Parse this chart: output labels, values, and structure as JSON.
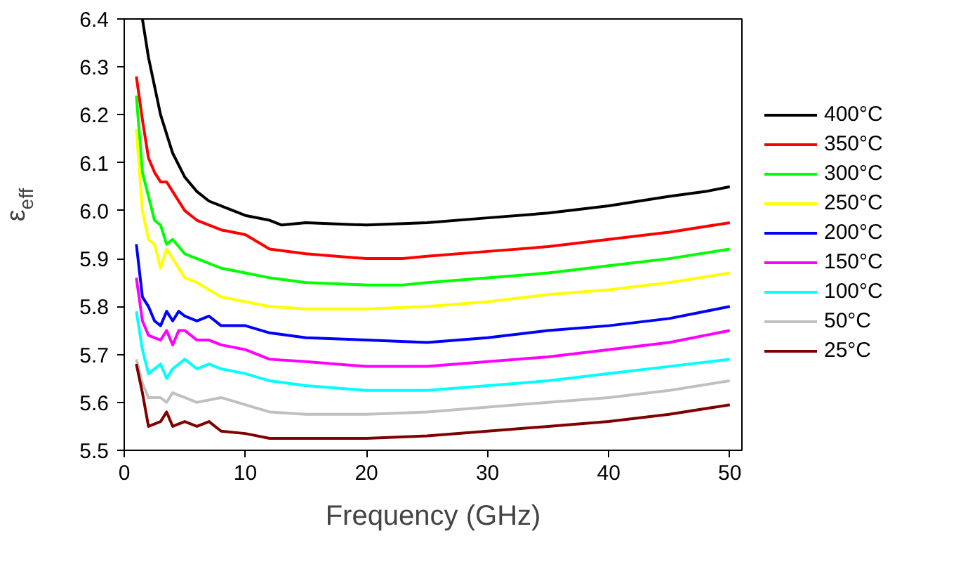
{
  "chart_data": {
    "type": "line",
    "xlabel": "Frequency (GHz)",
    "ylabel": "ε$_{eff}$",
    "xlim": [
      0,
      51
    ],
    "ylim": [
      5.5,
      6.4
    ],
    "xticks": [
      0,
      10,
      20,
      30,
      40,
      50
    ],
    "yticks": [
      {
        "value": 5.5,
        "label": "5.5"
      },
      {
        "value": 5.6,
        "label": "5.6"
      },
      {
        "value": 5.7,
        "label": "5.7"
      },
      {
        "value": 5.8,
        "label": "5.8"
      },
      {
        "value": 5.9,
        "label": "5.9"
      },
      {
        "value": 6.0,
        "label": "6.0"
      },
      {
        "value": 6.1,
        "label": "6.1"
      },
      {
        "value": 6.2,
        "label": "6.2"
      },
      {
        "value": 6.3,
        "label": "6.3"
      },
      {
        "value": 6.4,
        "label": "6.4"
      }
    ],
    "grid": false,
    "legend": "right",
    "marker": "none",
    "line_style": "solid",
    "series": [
      {
        "name": "400°C",
        "color": "#000000",
        "x": [
          1.5,
          2,
          3,
          4,
          5,
          6,
          7,
          8,
          10,
          12,
          13,
          15,
          20,
          25,
          30,
          35,
          40,
          45,
          48,
          50
        ],
        "values": [
          6.4,
          6.32,
          6.2,
          6.12,
          6.07,
          6.04,
          6.02,
          6.01,
          5.99,
          5.98,
          5.97,
          5.975,
          5.97,
          5.975,
          5.985,
          5.995,
          6.01,
          6.03,
          6.04,
          6.05
        ]
      },
      {
        "name": "350°C",
        "color": "#ff0000",
        "x": [
          1,
          1.5,
          2,
          2.5,
          3,
          3.5,
          4,
          5,
          6,
          8,
          10,
          12,
          15,
          20,
          23,
          25,
          30,
          35,
          40,
          45,
          50
        ],
        "values": [
          6.28,
          6.19,
          6.11,
          6.08,
          6.06,
          6.06,
          6.04,
          6.0,
          5.98,
          5.96,
          5.95,
          5.92,
          5.91,
          5.9,
          5.9,
          5.905,
          5.915,
          5.925,
          5.94,
          5.955,
          5.975
        ]
      },
      {
        "name": "300°C",
        "color": "#00ff00",
        "x": [
          1,
          1.5,
          2,
          2.5,
          3,
          3.5,
          4,
          5,
          6,
          8,
          10,
          12,
          15,
          20,
          23,
          25,
          30,
          35,
          40,
          45,
          50
        ],
        "values": [
          6.24,
          6.08,
          6.03,
          5.98,
          5.97,
          5.93,
          5.94,
          5.91,
          5.9,
          5.88,
          5.87,
          5.86,
          5.85,
          5.845,
          5.845,
          5.85,
          5.86,
          5.87,
          5.885,
          5.9,
          5.92
        ]
      },
      {
        "name": "250°C",
        "color": "#ffff00",
        "x": [
          1,
          1.5,
          2,
          2.5,
          3,
          3.5,
          4,
          5,
          6,
          8,
          10,
          12,
          15,
          20,
          25,
          30,
          35,
          40,
          45,
          50
        ],
        "values": [
          6.17,
          6.0,
          5.94,
          5.93,
          5.88,
          5.92,
          5.9,
          5.86,
          5.85,
          5.82,
          5.81,
          5.8,
          5.795,
          5.795,
          5.8,
          5.81,
          5.825,
          5.835,
          5.85,
          5.87
        ]
      },
      {
        "name": "200°C",
        "color": "#0000ff",
        "x": [
          1,
          1.5,
          2,
          2.5,
          3,
          3.5,
          4,
          4.5,
          5,
          6,
          7,
          8,
          10,
          12,
          15,
          20,
          25,
          30,
          35,
          40,
          45,
          50
        ],
        "values": [
          5.93,
          5.82,
          5.8,
          5.77,
          5.76,
          5.79,
          5.77,
          5.79,
          5.78,
          5.77,
          5.78,
          5.76,
          5.76,
          5.745,
          5.735,
          5.73,
          5.725,
          5.735,
          5.75,
          5.76,
          5.775,
          5.8
        ]
      },
      {
        "name": "150°C",
        "color": "#ff00ff",
        "x": [
          1,
          1.5,
          2,
          3,
          3.5,
          4,
          4.5,
          5,
          6,
          7,
          8,
          10,
          12,
          15,
          20,
          25,
          30,
          35,
          40,
          45,
          50
        ],
        "values": [
          5.86,
          5.77,
          5.74,
          5.73,
          5.75,
          5.72,
          5.75,
          5.75,
          5.73,
          5.73,
          5.72,
          5.71,
          5.69,
          5.685,
          5.675,
          5.675,
          5.685,
          5.695,
          5.71,
          5.725,
          5.75
        ]
      },
      {
        "name": "100°C",
        "color": "#00ffff",
        "x": [
          1,
          1.5,
          2,
          3,
          3.5,
          4,
          5,
          6,
          7,
          8,
          10,
          12,
          15,
          20,
          25,
          30,
          35,
          40,
          45,
          50
        ],
        "values": [
          5.79,
          5.71,
          5.66,
          5.68,
          5.65,
          5.67,
          5.69,
          5.67,
          5.68,
          5.67,
          5.66,
          5.645,
          5.635,
          5.625,
          5.625,
          5.635,
          5.645,
          5.66,
          5.675,
          5.69
        ]
      },
      {
        "name": "50°C",
        "color": "#c0c0c0",
        "x": [
          1,
          1.5,
          2,
          3,
          3.5,
          4,
          5,
          6,
          8,
          10,
          12,
          15,
          20,
          25,
          30,
          35,
          40,
          45,
          50
        ],
        "values": [
          5.69,
          5.64,
          5.61,
          5.61,
          5.6,
          5.62,
          5.61,
          5.6,
          5.61,
          5.595,
          5.58,
          5.575,
          5.575,
          5.58,
          5.59,
          5.6,
          5.61,
          5.625,
          5.645
        ]
      },
      {
        "name": "25°C",
        "color": "#800000",
        "x": [
          1,
          1.5,
          2,
          3,
          3.5,
          4,
          5,
          6,
          7,
          8,
          10,
          12,
          15,
          20,
          25,
          30,
          35,
          40,
          45,
          50
        ],
        "values": [
          5.68,
          5.62,
          5.55,
          5.56,
          5.58,
          5.55,
          5.56,
          5.55,
          5.56,
          5.54,
          5.535,
          5.525,
          5.525,
          5.525,
          5.53,
          5.54,
          5.55,
          5.56,
          5.575,
          5.595
        ]
      }
    ]
  }
}
